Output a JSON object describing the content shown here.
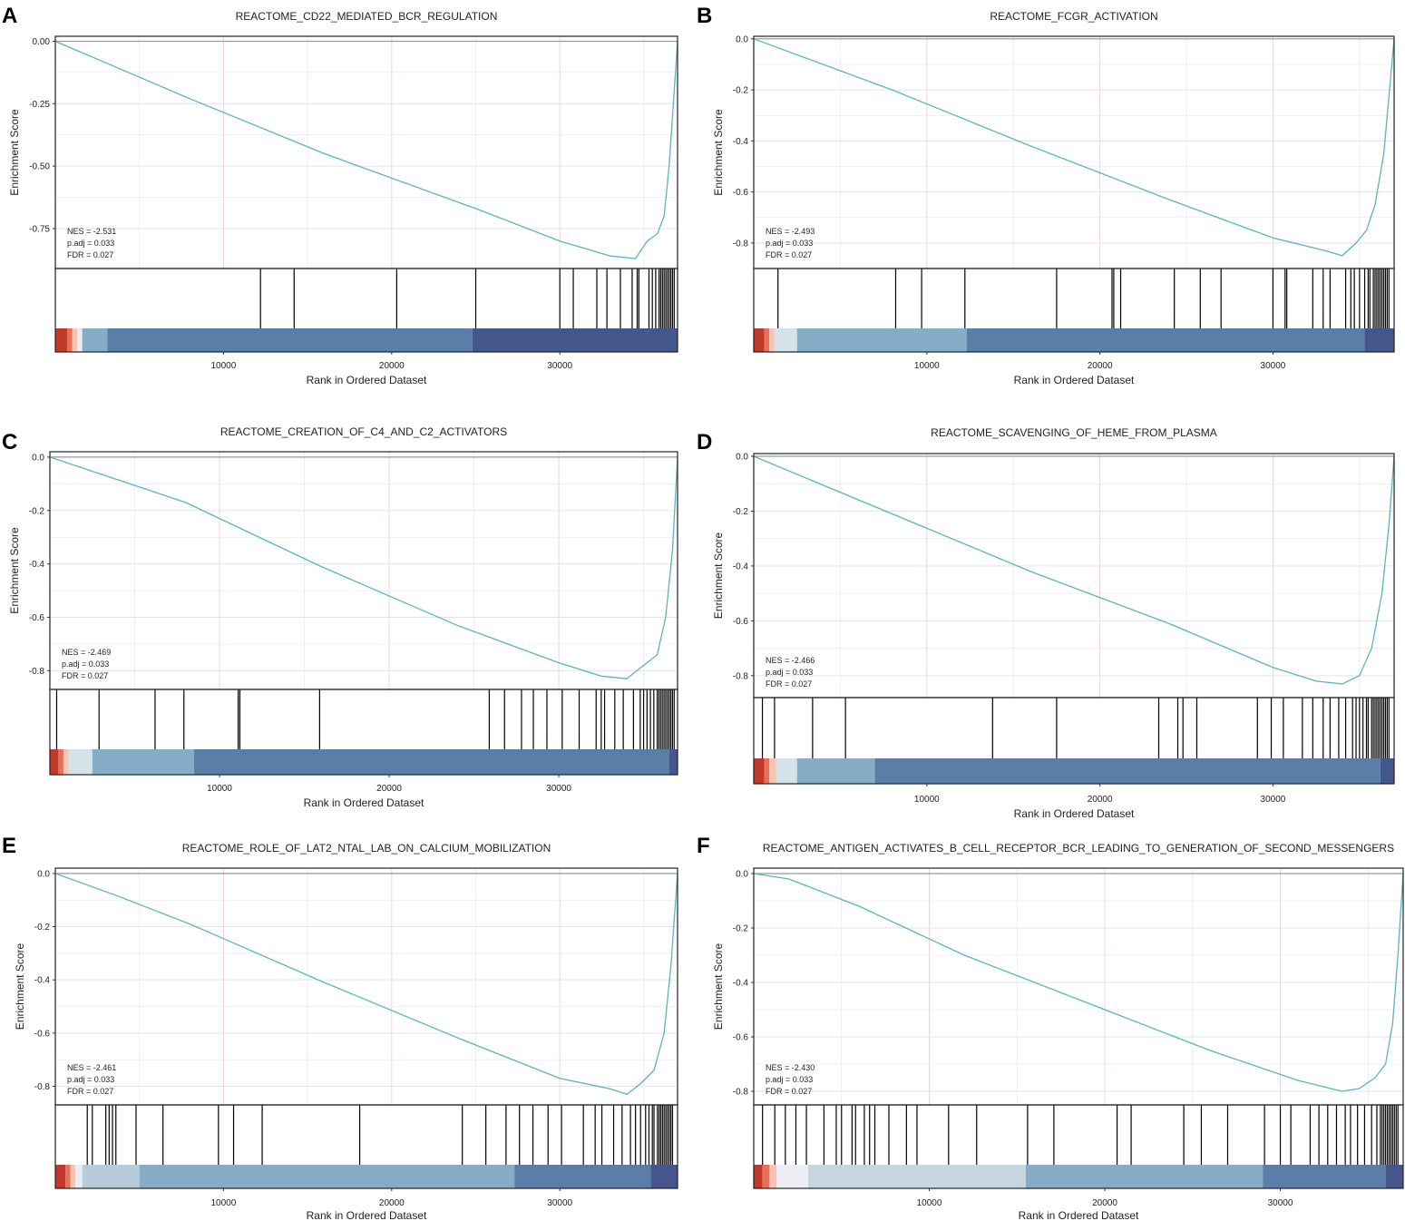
{
  "figure": {
    "xlabel": "Rank in Ordered Dataset",
    "ylabel": "Enrichment Score"
  },
  "colors": {
    "curve": "#5bb3c2",
    "zero_line": "#999999",
    "grid_major": "#e3e3e3",
    "grid_highlight": "#f3d3d3",
    "hits": "#000000"
  },
  "chart_data": [
    {
      "type": "line",
      "label": "A",
      "title": "REACTOME_CD22_MEDIATED_BCR_REGULATION",
      "xlim": [
        0,
        37000
      ],
      "ylim": [
        -0.91,
        0.02
      ],
      "yticks": [
        0,
        -0.25,
        -0.5,
        -0.75
      ],
      "ytick_labels": [
        "0.00",
        "-0.25",
        "-0.50",
        "-0.75"
      ],
      "xticks": [
        10000,
        20000,
        30000
      ],
      "xtick_labels": [
        "10000",
        "20000",
        "30000"
      ],
      "stats": [
        "NES = -2.531",
        "p.adj = 0.033",
        "FDR = 0.027"
      ],
      "curve": [
        [
          0,
          0
        ],
        [
          8000,
          -0.23
        ],
        [
          16000,
          -0.45
        ],
        [
          25000,
          -0.67
        ],
        [
          30000,
          -0.8
        ],
        [
          33000,
          -0.86
        ],
        [
          34500,
          -0.87
        ],
        [
          35200,
          -0.8
        ],
        [
          35800,
          -0.77
        ],
        [
          36200,
          -0.7
        ],
        [
          36500,
          -0.5
        ],
        [
          36800,
          -0.2
        ],
        [
          37000,
          0
        ]
      ],
      "hits": [
        12200,
        14200,
        20300,
        25000,
        30000,
        30800,
        32200,
        32800,
        33600,
        34300,
        34600,
        34700,
        35300,
        35500,
        35700,
        35900,
        36000,
        36100,
        36200,
        36300,
        36400,
        36500,
        36600,
        36700,
        36800
      ],
      "bands": [
        [
          0,
          700,
          "#c0392b"
        ],
        [
          700,
          1000,
          "#e8705a"
        ],
        [
          1000,
          1300,
          "#f6c4b3"
        ],
        [
          1300,
          1600,
          "#e6eef3"
        ],
        [
          1600,
          3100,
          "#86adc5"
        ],
        [
          3100,
          24800,
          "#5b7ea8"
        ],
        [
          24800,
          37000,
          "#44568c"
        ]
      ]
    },
    {
      "type": "line",
      "label": "B",
      "title": "REACTOME_FCGR_ACTIVATION",
      "xlim": [
        0,
        37000
      ],
      "ylim": [
        -0.9,
        0.01
      ],
      "yticks": [
        0,
        -0.2,
        -0.4,
        -0.6,
        -0.8
      ],
      "ytick_labels": [
        "0.0",
        "-0.2",
        "-0.4",
        "-0.6",
        "-0.8"
      ],
      "xticks": [
        10000,
        20000,
        30000
      ],
      "xtick_labels": [
        "10000",
        "20000",
        "30000"
      ],
      "stats": [
        "NES = -2.493",
        "p.adj = 0.033",
        "FDR = 0.027"
      ],
      "curve": [
        [
          0,
          0
        ],
        [
          8000,
          -0.2
        ],
        [
          16000,
          -0.42
        ],
        [
          24000,
          -0.63
        ],
        [
          30000,
          -0.78
        ],
        [
          33000,
          -0.83
        ],
        [
          34000,
          -0.85
        ],
        [
          34800,
          -0.8
        ],
        [
          35400,
          -0.75
        ],
        [
          35900,
          -0.65
        ],
        [
          36400,
          -0.45
        ],
        [
          36800,
          -0.15
        ],
        [
          37000,
          0
        ]
      ],
      "hits": [
        1400,
        8200,
        9700,
        12200,
        17500,
        20700,
        20800,
        21200,
        24300,
        25800,
        27000,
        30000,
        30700,
        30800,
        32300,
        32900,
        33300,
        34200,
        34500,
        34700,
        35000,
        35300,
        35500,
        35600,
        35800,
        35900,
        36000,
        36100,
        36200,
        36300,
        36400,
        36500,
        36600,
        36700
      ],
      "bands": [
        [
          0,
          600,
          "#c0392b"
        ],
        [
          600,
          900,
          "#e8705a"
        ],
        [
          900,
          1200,
          "#f6c4b3"
        ],
        [
          1200,
          2500,
          "#d5e2ea"
        ],
        [
          2500,
          12300,
          "#86adc5"
        ],
        [
          12300,
          35300,
          "#5b7ea8"
        ],
        [
          35300,
          37000,
          "#44568c"
        ]
      ]
    },
    {
      "type": "line",
      "label": "C",
      "title": "REACTOME_CREATION_OF_C4_AND_C2_ACTIVATORS",
      "xlim": [
        0,
        37000
      ],
      "ylim": [
        -0.87,
        0.02
      ],
      "yticks": [
        0,
        -0.2,
        -0.4,
        -0.6,
        -0.8
      ],
      "ytick_labels": [
        "0.0",
        "-0.2",
        "-0.4",
        "-0.6",
        "-0.8"
      ],
      "xticks": [
        10000,
        20000,
        30000
      ],
      "xtick_labels": [
        "10000",
        "20000",
        "30000"
      ],
      "stats": [
        "NES = -2.469",
        "p.adj = 0.033",
        "FDR = 0.027"
      ],
      "curve": [
        [
          0,
          0
        ],
        [
          8000,
          -0.17
        ],
        [
          16000,
          -0.41
        ],
        [
          24000,
          -0.63
        ],
        [
          30000,
          -0.77
        ],
        [
          32500,
          -0.82
        ],
        [
          34000,
          -0.83
        ],
        [
          35000,
          -0.78
        ],
        [
          35800,
          -0.74
        ],
        [
          36300,
          -0.6
        ],
        [
          36700,
          -0.35
        ],
        [
          37000,
          0
        ]
      ],
      "hits": [
        400,
        2900,
        6200,
        7900,
        11100,
        11200,
        15900,
        25900,
        26800,
        27800,
        28500,
        29300,
        30200,
        31200,
        32200,
        32500,
        32700,
        33300,
        33800,
        34400,
        34800,
        35000,
        35200,
        35400,
        35600,
        35800,
        35900,
        36000,
        36100,
        36200,
        36300,
        36400,
        36500,
        36600,
        36700,
        36800
      ],
      "bands": [
        [
          0,
          500,
          "#c0392b"
        ],
        [
          500,
          800,
          "#e8705a"
        ],
        [
          800,
          1100,
          "#f6c4b3"
        ],
        [
          1100,
          2500,
          "#d5e2ea"
        ],
        [
          2500,
          8500,
          "#86adc5"
        ],
        [
          8500,
          36500,
          "#5b7ea8"
        ],
        [
          36500,
          37000,
          "#44568c"
        ]
      ]
    },
    {
      "type": "line",
      "label": "D",
      "title": "REACTOME_SCAVENGING_OF_HEME_FROM_PLASMA",
      "xlim": [
        0,
        37000
      ],
      "ylim": [
        -0.88,
        0.01
      ],
      "yticks": [
        0,
        -0.2,
        -0.4,
        -0.6,
        -0.8
      ],
      "ytick_labels": [
        "0.0",
        "-0.2",
        "-0.4",
        "-0.6",
        "-0.8"
      ],
      "xticks": [
        10000,
        20000,
        30000
      ],
      "xtick_labels": [
        "10000",
        "20000",
        "30000"
      ],
      "stats": [
        "NES = -2.466",
        "p.adj = 0.033",
        "FDR = 0.027"
      ],
      "curve": [
        [
          0,
          0
        ],
        [
          8000,
          -0.21
        ],
        [
          16000,
          -0.42
        ],
        [
          24000,
          -0.61
        ],
        [
          30000,
          -0.77
        ],
        [
          32500,
          -0.82
        ],
        [
          34000,
          -0.83
        ],
        [
          35000,
          -0.8
        ],
        [
          35700,
          -0.7
        ],
        [
          36300,
          -0.5
        ],
        [
          36700,
          -0.25
        ],
        [
          37000,
          0
        ]
      ],
      "hits": [
        500,
        1200,
        3400,
        5300,
        13800,
        17500,
        23400,
        24500,
        24800,
        25600,
        29100,
        29900,
        30600,
        31700,
        32300,
        32900,
        33300,
        33800,
        34200,
        34600,
        34800,
        35000,
        35200,
        35400,
        35500,
        35700,
        35800,
        35900,
        36000,
        36100,
        36200,
        36300,
        36400,
        36500,
        36600,
        36700
      ],
      "bands": [
        [
          0,
          600,
          "#c0392b"
        ],
        [
          600,
          900,
          "#e8705a"
        ],
        [
          900,
          1300,
          "#f6c4b3"
        ],
        [
          1300,
          2500,
          "#d5e2ea"
        ],
        [
          2500,
          7000,
          "#86adc5"
        ],
        [
          7000,
          36200,
          "#5b7ea8"
        ],
        [
          36200,
          37000,
          "#44568c"
        ]
      ]
    },
    {
      "type": "line",
      "label": "E",
      "title": "REACTOME_ROLE_OF_LAT2_NTAL_LAB_ON_CALCIUM_MOBILIZATION",
      "xlim": [
        0,
        37000
      ],
      "ylim": [
        -0.87,
        0.02
      ],
      "yticks": [
        0,
        -0.2,
        -0.4,
        -0.6,
        -0.8
      ],
      "ytick_labels": [
        "0.0",
        "-0.2",
        "-0.4",
        "-0.6",
        "-0.8"
      ],
      "xticks": [
        10000,
        20000,
        30000
      ],
      "xtick_labels": [
        "10000",
        "20000",
        "30000"
      ],
      "stats": [
        "NES = -2.461",
        "p.adj = 0.033",
        "FDR = 0.027"
      ],
      "curve": [
        [
          0,
          0
        ],
        [
          3500,
          -0.08
        ],
        [
          8000,
          -0.19
        ],
        [
          16000,
          -0.41
        ],
        [
          24000,
          -0.62
        ],
        [
          30000,
          -0.77
        ],
        [
          33000,
          -0.81
        ],
        [
          34000,
          -0.83
        ],
        [
          34800,
          -0.79
        ],
        [
          35600,
          -0.74
        ],
        [
          36200,
          -0.6
        ],
        [
          36600,
          -0.35
        ],
        [
          37000,
          0
        ]
      ],
      "hits": [
        1900,
        2200,
        3000,
        3200,
        3400,
        3600,
        4800,
        6400,
        9700,
        10600,
        12300,
        18100,
        24200,
        25600,
        26800,
        27600,
        28400,
        29300,
        30100,
        31400,
        32100,
        32500,
        33200,
        33700,
        34200,
        34500,
        34800,
        35100,
        35300,
        35500,
        35600,
        35800,
        35900,
        36000,
        36100,
        36200,
        36300,
        36400,
        36500,
        36600,
        36700
      ],
      "bands": [
        [
          0,
          600,
          "#c0392b"
        ],
        [
          600,
          900,
          "#e8705a"
        ],
        [
          900,
          1200,
          "#f6c4b3"
        ],
        [
          1200,
          1600,
          "#e6eef3"
        ],
        [
          1600,
          5000,
          "#b7ccd9"
        ],
        [
          5000,
          27300,
          "#86adc5"
        ],
        [
          27300,
          35400,
          "#5b7ea8"
        ],
        [
          35400,
          37000,
          "#44568c"
        ]
      ]
    },
    {
      "type": "line",
      "label": "F",
      "title": "REACTOME_ANTIGEN_ACTIVATES_B_CELL_RECEPTOR_BCR_LEADING_TO_GENERATION_OF_SECOND_MESSENGERS",
      "xlim": [
        0,
        37000
      ],
      "ylim": [
        -0.85,
        0.02
      ],
      "yticks": [
        0,
        -0.2,
        -0.4,
        -0.6,
        -0.8
      ],
      "ytick_labels": [
        "0.0",
        "-0.2",
        "-0.4",
        "-0.6",
        "-0.8"
      ],
      "xticks": [
        10000,
        20000,
        30000
      ],
      "xtick_labels": [
        "10000",
        "20000",
        "30000"
      ],
      "stats": [
        "NES = -2.430",
        "p.adj = 0.033",
        "FDR = 0.027"
      ],
      "curve": [
        [
          0,
          0
        ],
        [
          2000,
          -0.02
        ],
        [
          6000,
          -0.12
        ],
        [
          12000,
          -0.3
        ],
        [
          20000,
          -0.5
        ],
        [
          26000,
          -0.65
        ],
        [
          31000,
          -0.76
        ],
        [
          33500,
          -0.8
        ],
        [
          34500,
          -0.79
        ],
        [
          35400,
          -0.75
        ],
        [
          36000,
          -0.7
        ],
        [
          36400,
          -0.55
        ],
        [
          36700,
          -0.3
        ],
        [
          37000,
          0
        ]
      ],
      "hits": [
        500,
        1200,
        1800,
        2400,
        3000,
        4000,
        4700,
        5000,
        5600,
        5800,
        6300,
        6600,
        6900,
        7700,
        8700,
        9300,
        11100,
        12700,
        15600,
        17100,
        20700,
        21500,
        24500,
        25500,
        27000,
        29100,
        30000,
        30600,
        31700,
        32200,
        32700,
        33200,
        33700,
        34000,
        34400,
        34800,
        35200,
        35500,
        35700,
        35800,
        35900,
        36000,
        36100,
        36200,
        36300,
        36400,
        36500,
        36600,
        36700
      ],
      "bands": [
        [
          0,
          500,
          "#c0392b"
        ],
        [
          500,
          900,
          "#e8705a"
        ],
        [
          900,
          1300,
          "#f6c4b3"
        ],
        [
          1300,
          3100,
          "#eeeef6"
        ],
        [
          3100,
          15500,
          "#c5d6e0"
        ],
        [
          15500,
          29000,
          "#86adc5"
        ],
        [
          29000,
          36000,
          "#5b7ea8"
        ],
        [
          36000,
          37000,
          "#44568c"
        ]
      ]
    }
  ]
}
